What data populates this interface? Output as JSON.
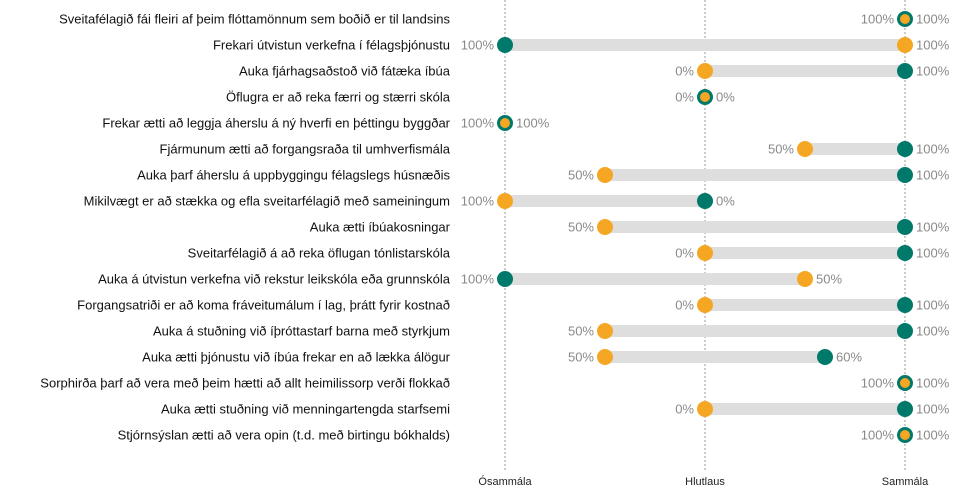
{
  "chart_data": {
    "type": "dumbbell",
    "x_axis": {
      "ticks": [
        {
          "value": -1,
          "label": "Ósammála"
        },
        {
          "value": 0,
          "label": "Hlutlaus"
        },
        {
          "value": 1,
          "label": "Sammála"
        }
      ],
      "range": [
        -1,
        1
      ],
      "gridlines": "dotted vertical at ticks"
    },
    "series": [
      {
        "key": "a",
        "color": "#f5a623"
      },
      {
        "key": "b",
        "color": "#00796b"
      }
    ],
    "rows": [
      {
        "label": "Sveitafélagið fái fleiri af þeim flóttamönnum sem boðið er til landsins",
        "a": 1,
        "a_label": "100%",
        "b": 1,
        "b_label": "100%"
      },
      {
        "label": "Frekari útvistun verkefna í félagsþjónustu",
        "a": 1,
        "a_label": "100%",
        "b": -1,
        "b_label": "100%"
      },
      {
        "label": "Auka fjárhagsaðstoð við fátæka íbúa",
        "a": 0,
        "a_label": "0%",
        "b": 1,
        "b_label": "100%"
      },
      {
        "label": "Öflugra er að reka færri og stærri skóla",
        "a": 0,
        "a_label": "0%",
        "b": 0,
        "b_label": "0%"
      },
      {
        "label": "Frekar ætti að leggja áherslu á ný hverfi en þéttingu byggðar",
        "a": -1,
        "a_label": "100%",
        "b": -1,
        "b_label": "100%"
      },
      {
        "label": "Fjármunum ætti að forgangsraða til umhverfismála",
        "a": 0.5,
        "a_label": "50%",
        "b": 1,
        "b_label": "100%"
      },
      {
        "label": "Auka þarf áherslu á uppbyggingu félagslegs húsnæðis",
        "a": -0.5,
        "a_label": "50%",
        "b": 1,
        "b_label": "100%"
      },
      {
        "label": "Mikilvægt er að stækka og efla sveitarfélagið með sameiningum",
        "a": -1,
        "a_label": "100%",
        "b": 0,
        "b_label": "0%"
      },
      {
        "label": "Auka ætti íbúakosningar",
        "a": -0.5,
        "a_label": "50%",
        "b": 1,
        "b_label": "100%"
      },
      {
        "label": "Sveitarfélagið á að reka öflugan tónlistarskóla",
        "a": 0,
        "a_label": "0%",
        "b": 1,
        "b_label": "100%"
      },
      {
        "label": "Auka á útvistun verkefna við rekstur leikskóla eða grunnskóla",
        "a": 0.5,
        "a_label": "50%",
        "b": -1,
        "b_label": "100%"
      },
      {
        "label": "Forgangsatriði er að koma fráveitumálum í lag, þrátt fyrir kostnað",
        "a": 0,
        "a_label": "0%",
        "b": 1,
        "b_label": "100%"
      },
      {
        "label": "Auka á stuðning við íþróttastarf barna með styrkjum",
        "a": -0.5,
        "a_label": "50%",
        "b": 1,
        "b_label": "100%"
      },
      {
        "label": "Auka ætti þjónustu við íbúa frekar en að lækka álögur",
        "a": -0.5,
        "a_label": "50%",
        "b": 0.6,
        "b_label": "60%"
      },
      {
        "label": "Sorphirða þarf að vera með þeim hætti að allt heimilissorp verði flokkað",
        "a": 1,
        "a_label": "100%",
        "b": 1,
        "b_label": "100%"
      },
      {
        "label": "Auka ætti stuðning við menningartengda starfsemi",
        "a": 0,
        "a_label": "0%",
        "b": 1,
        "b_label": "100%"
      },
      {
        "label": "Stjórnsýslan ætti að vera opin (t.d. með birtingu bókhalds)",
        "a": 1,
        "a_label": "100%",
        "b": 1,
        "b_label": "100%"
      }
    ]
  }
}
